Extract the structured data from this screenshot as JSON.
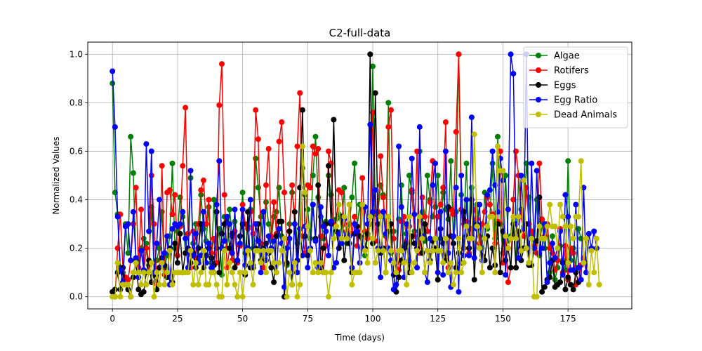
{
  "chart_data": {
    "type": "line",
    "title": "C2-full-data",
    "xlabel": "Time (days)",
    "ylabel": "Normalized Values",
    "xlim": [
      -9.5,
      199.5
    ],
    "ylim": [
      -0.05,
      1.05
    ],
    "x_ticks": [
      0,
      25,
      50,
      75,
      100,
      125,
      150,
      175
    ],
    "x_tick_labels": [
      "0",
      "25",
      "50",
      "75",
      "100",
      "125",
      "150",
      "175"
    ],
    "y_ticks": [
      0.0,
      0.2,
      0.4,
      0.6,
      0.8,
      1.0
    ],
    "y_tick_labels": [
      "0.0",
      "0.2",
      "0.4",
      "0.6",
      "0.8",
      "1.0"
    ],
    "grid": true,
    "legend_position": "upper right",
    "series": [
      {
        "name": "Algae",
        "color": "#008000",
        "values": [
          0.88,
          0.43,
          0.34,
          0.12,
          0.1,
          0.3,
          0.18,
          0.66,
          0.51,
          0.15,
          0.12,
          0.2,
          0.24,
          0.22,
          0.13,
          0.37,
          0.1,
          0.15,
          0.2,
          0.35,
          0.12,
          0.17,
          0.25,
          0.55,
          0.2,
          0.27,
          0.41,
          0.33,
          0.18,
          0.26,
          0.49,
          0.22,
          0.3,
          0.15,
          0.42,
          0.28,
          0.23,
          0.37,
          0.14,
          0.4,
          0.2,
          0.28,
          0.09,
          0.33,
          0.2,
          0.36,
          0.25,
          0.31,
          0.15,
          0.25,
          0.43,
          0.18,
          0.29,
          0.36,
          0.2,
          0.57,
          0.45,
          0.33,
          0.15,
          0.39,
          0.3,
          0.23,
          0.33,
          0.35,
          0.45,
          0.25,
          0.2,
          0.13,
          0.3,
          0.43,
          0.35,
          0.22,
          0.28,
          0.53,
          0.42,
          0.36,
          0.24,
          0.5,
          0.66,
          0.41,
          0.33,
          0.24,
          0.31,
          0.5,
          0.42,
          0.24,
          0.32,
          0.34,
          0.27,
          0.45,
          0.22,
          0.3,
          0.41,
          0.55,
          0.29,
          0.38,
          0.2,
          0.17,
          0.25,
          0.3,
          0.95,
          0.34,
          0.35,
          0.46,
          0.42,
          0.25,
          0.8,
          0.18,
          0.27,
          0.1,
          0.32,
          0.46,
          0.21,
          0.26,
          0.5,
          0.43,
          0.27,
          0.22,
          0.6,
          0.35,
          0.23,
          0.5,
          0.4,
          0.33,
          0.37,
          0.5,
          0.24,
          0.43,
          0.36,
          0.32,
          0.56,
          0.22,
          0.35,
          1.0,
          0.42,
          0.3,
          0.55,
          0.2,
          0.45,
          0.3,
          0.38,
          0.25,
          0.2,
          0.43,
          0.28,
          0.33,
          0.55,
          0.24,
          0.66,
          0.3,
          0.18,
          0.5,
          0.23,
          0.25,
          0.4,
          0.12,
          0.5,
          0.36,
          0.29,
          0.55,
          0.41,
          0.26,
          0.2,
          0.4,
          0.17,
          0.31,
          0.2,
          0.3,
          0.1,
          0.25,
          0.07,
          0.12,
          0.21,
          0.15,
          0.11,
          0.56,
          0.15,
          0.2,
          0.12,
          0.28,
          0.24
        ]
      },
      {
        "name": "Rotifers",
        "color": "#ff0000",
        "values": [
          0.02,
          0.0,
          0.2,
          0.34,
          0.12,
          0.08,
          0.07,
          0.15,
          0.3,
          0.45,
          0.12,
          0.36,
          0.1,
          0.2,
          0.1,
          0.5,
          0.3,
          0.05,
          0.12,
          0.54,
          0.09,
          0.43,
          0.44,
          0.34,
          0.42,
          0.17,
          0.29,
          0.54,
          0.78,
          0.26,
          0.12,
          0.27,
          0.16,
          0.3,
          0.44,
          0.48,
          0.3,
          0.4,
          0.18,
          0.24,
          0.14,
          0.79,
          0.96,
          0.42,
          0.12,
          0.2,
          0.15,
          0.27,
          0.14,
          0.21,
          0.38,
          0.3,
          0.28,
          0.35,
          0.26,
          0.77,
          0.65,
          0.22,
          0.12,
          0.46,
          0.61,
          0.25,
          0.39,
          0.26,
          0.64,
          0.72,
          0.43,
          0.2,
          0.27,
          0.46,
          0.3,
          0.62,
          0.84,
          0.25,
          0.18,
          0.46,
          0.45,
          0.62,
          0.59,
          0.61,
          0.25,
          0.1,
          0.21,
          0.6,
          0.55,
          0.3,
          0.29,
          0.44,
          0.43,
          0.3,
          0.27,
          0.38,
          0.26,
          0.33,
          0.21,
          0.25,
          0.49,
          0.27,
          0.24,
          0.33,
          0.76,
          0.23,
          0.35,
          0.58,
          0.41,
          0.2,
          0.7,
          0.77,
          0.24,
          0.14,
          0.11,
          0.31,
          0.33,
          0.23,
          0.29,
          0.44,
          0.25,
          0.6,
          0.18,
          0.41,
          0.33,
          0.27,
          0.39,
          0.56,
          0.24,
          0.33,
          0.38,
          0.45,
          0.72,
          0.12,
          0.36,
          0.34,
          0.68,
          1.0,
          0.36,
          0.2,
          0.31,
          0.18,
          0.28,
          0.36,
          0.32,
          0.22,
          0.3,
          0.35,
          0.41,
          0.38,
          0.34,
          0.22,
          0.31,
          0.6,
          0.14,
          0.25,
          0.06,
          0.12,
          0.4,
          0.6,
          0.5,
          0.33,
          0.25,
          0.45,
          0.3,
          0.27,
          0.21,
          0.18,
          0.55,
          0.32,
          0.25,
          0.3,
          0.2,
          0.18,
          0.11,
          0.15,
          0.28,
          0.1,
          0.21,
          0.07,
          0.2,
          0.18,
          0.05,
          0.06,
          0.13,
          0.16,
          0.1
        ]
      },
      {
        "name": "Eggs",
        "color": "#000000",
        "values": [
          0.02,
          0.03,
          0.1,
          0.03,
          0.12,
          0.05,
          0.03,
          0.0,
          0.08,
          0.15,
          0.03,
          0.01,
          0.02,
          0.1,
          0.15,
          0.06,
          0.09,
          0.03,
          0.12,
          0.16,
          0.13,
          0.08,
          0.2,
          0.06,
          0.22,
          0.14,
          0.26,
          0.1,
          0.18,
          0.2,
          0.14,
          0.18,
          0.12,
          0.2,
          0.3,
          0.12,
          0.17,
          0.2,
          0.16,
          0.13,
          0.35,
          0.1,
          0.26,
          0.3,
          0.33,
          0.2,
          0.26,
          0.12,
          0.15,
          0.25,
          0.3,
          0.09,
          0.35,
          0.12,
          0.12,
          0.2,
          0.3,
          0.15,
          0.2,
          0.22,
          0.18,
          0.12,
          0.06,
          0.25,
          0.31,
          0.31,
          0.0,
          0.14,
          0.27,
          0.05,
          0.35,
          0.15,
          0.45,
          0.77,
          0.25,
          0.17,
          0.2,
          0.38,
          0.24,
          0.46,
          0.12,
          0.2,
          0.3,
          0.54,
          0.3,
          0.73,
          0.27,
          0.2,
          0.33,
          0.15,
          0.25,
          0.22,
          0.1,
          0.26,
          0.29,
          0.25,
          0.2,
          0.2,
          0.26,
          1.0,
          0.22,
          0.84,
          0.3,
          0.18,
          0.2,
          0.1,
          0.27,
          0.3,
          0.09,
          0.02,
          0.08,
          0.15,
          0.2,
          0.22,
          0.1,
          0.25,
          0.22,
          0.2,
          0.27,
          0.18,
          0.3,
          0.19,
          0.15,
          0.23,
          0.2,
          0.07,
          0.28,
          0.22,
          0.15,
          0.37,
          0.25,
          0.22,
          0.12,
          0.18,
          0.14,
          0.35,
          0.25,
          0.2,
          0.4,
          0.07,
          0.3,
          0.2,
          0.17,
          0.15,
          0.25,
          0.12,
          0.2,
          0.13,
          0.3,
          0.1,
          0.27,
          0.15,
          0.2,
          0.12,
          0.3,
          0.12,
          0.27,
          0.15,
          0.2,
          0.3,
          0.13,
          0.13,
          0.2,
          0.23,
          0.41,
          0.02,
          0.04,
          0.07,
          0.08,
          0.15,
          0.04,
          0.05,
          0.06,
          0.14,
          0.03,
          0.08,
          0.05,
          0.03,
          0.1,
          0.06
        ]
      },
      {
        "name": "Egg Ratio",
        "color": "#0000ff",
        "values": [
          0.93,
          0.7,
          0.33,
          0.11,
          0.06,
          0.29,
          0.3,
          0.15,
          0.35,
          0.16,
          0.08,
          0.19,
          0.11,
          0.63,
          0.27,
          0.6,
          0.1,
          0.22,
          0.4,
          0.13,
          0.18,
          0.25,
          0.05,
          0.28,
          0.3,
          0.29,
          0.3,
          0.35,
          0.24,
          0.12,
          0.52,
          0.17,
          0.26,
          0.14,
          0.17,
          0.35,
          0.14,
          0.22,
          0.12,
          0.1,
          0.38,
          0.56,
          0.2,
          0.23,
          0.33,
          0.3,
          0.18,
          0.36,
          0.15,
          0.22,
          0.36,
          0.13,
          0.2,
          0.4,
          0.13,
          0.3,
          0.23,
          0.1,
          0.35,
          0.15,
          0.25,
          0.2,
          0.23,
          0.1,
          0.28,
          0.22,
          0.04,
          0.2,
          0.24,
          0.1,
          0.3,
          0.1,
          0.28,
          0.17,
          0.29,
          0.12,
          0.2,
          0.38,
          0.23,
          0.12,
          0.37,
          0.29,
          0.27,
          0.17,
          0.31,
          0.12,
          0.14,
          0.26,
          0.22,
          0.32,
          0.26,
          0.25,
          0.12,
          0.3,
          0.27,
          0.14,
          0.2,
          0.37,
          0.3,
          0.71,
          0.35,
          0.44,
          0.2,
          0.08,
          0.35,
          0.26,
          0.2,
          0.15,
          0.03,
          0.05,
          0.62,
          0.37,
          0.08,
          0.3,
          0.15,
          0.57,
          0.34,
          0.12,
          0.7,
          0.25,
          0.1,
          0.06,
          0.24,
          0.46,
          0.55,
          0.1,
          0.35,
          0.09,
          0.6,
          0.18,
          0.04,
          0.25,
          0.45,
          0.02,
          0.5,
          0.17,
          0.4,
          0.17,
          0.74,
          0.16,
          0.28,
          0.38,
          0.15,
          0.24,
          0.42,
          0.44,
          0.6,
          0.46,
          0.35,
          0.57,
          0.48,
          0.09,
          0.36,
          1.0,
          0.92,
          0.3,
          0.16,
          0.5,
          0.28,
          1.0,
          0.14,
          0.55,
          0.2,
          0.52,
          0.18,
          0.2,
          0.3,
          0.06,
          0.14,
          0.22,
          0.16,
          0.2,
          0.27,
          0.09,
          0.42,
          0.33,
          0.11,
          0.11,
          0.38,
          0.12,
          0.07,
          0.45,
          0.1,
          0.26,
          0.2,
          0.27,
          0.2
        ]
      },
      {
        "name": "Dead Animals",
        "color": "#bfbf00",
        "values": [
          0.0,
          0.0,
          0.14,
          0.0,
          0.05,
          0.05,
          0.05,
          0.0,
          0.1,
          0.14,
          0.1,
          0.05,
          0.1,
          0.05,
          0.1,
          0.14,
          0.0,
          0.1,
          0.05,
          0.14,
          0.05,
          0.1,
          0.19,
          0.05,
          0.1,
          0.1,
          0.1,
          0.1,
          0.1,
          0.1,
          0.19,
          0.05,
          0.14,
          0.05,
          0.1,
          0.19,
          0.05,
          0.05,
          0.1,
          0.1,
          0.05,
          0.0,
          0.0,
          0.19,
          0.05,
          0.14,
          0.1,
          0.05,
          0.0,
          0.1,
          0.0,
          0.1,
          0.19,
          0.14,
          0.05,
          0.19,
          0.19,
          0.14,
          0.19,
          0.1,
          0.19,
          0.19,
          0.14,
          0.1,
          0.14,
          0.19,
          0.24,
          0.0,
          0.1,
          0.05,
          0.14,
          0.0,
          0.05,
          0.62,
          0.43,
          0.29,
          0.19,
          0.1,
          0.14,
          0.1,
          0.14,
          0.1,
          0.1,
          0.0,
          0.1,
          0.24,
          0.29,
          0.38,
          0.24,
          0.33,
          0.24,
          0.38,
          0.05,
          0.1,
          0.1,
          0.1,
          0.38,
          0.19,
          0.14,
          0.33,
          0.24,
          0.14,
          0.19,
          0.33,
          0.19,
          0.1,
          0.33,
          0.19,
          0.14,
          0.1,
          0.19,
          0.19,
          0.14,
          0.05,
          0.33,
          0.1,
          0.14,
          0.19,
          0.33,
          0.24,
          0.1,
          0.19,
          0.14,
          0.19,
          0.24,
          0.19,
          0.19,
          0.14,
          0.24,
          0.1,
          0.14,
          0.05,
          0.1,
          0.24,
          0.1,
          0.14,
          0.29,
          0.24,
          0.24,
          0.67,
          0.29,
          0.2,
          0.1,
          0.24,
          0.29,
          0.33,
          0.33,
          0.1,
          0.62,
          0.52,
          0.52,
          0.25,
          0.2,
          0.24,
          0.33,
          0.24,
          0.33,
          0.19,
          0.48,
          0.2,
          0.14,
          0.24,
          0.0,
          0.0,
          0.29,
          0.24,
          0.24,
          0.29,
          0.38,
          0.29,
          0.29,
          0.2,
          0.38,
          0.33,
          0.29,
          0.14,
          0.29,
          0.24,
          0.33,
          0.33,
          0.56,
          0.14,
          0.24,
          0.05,
          0.19,
          0.1,
          0.24,
          0.05
        ]
      }
    ]
  }
}
